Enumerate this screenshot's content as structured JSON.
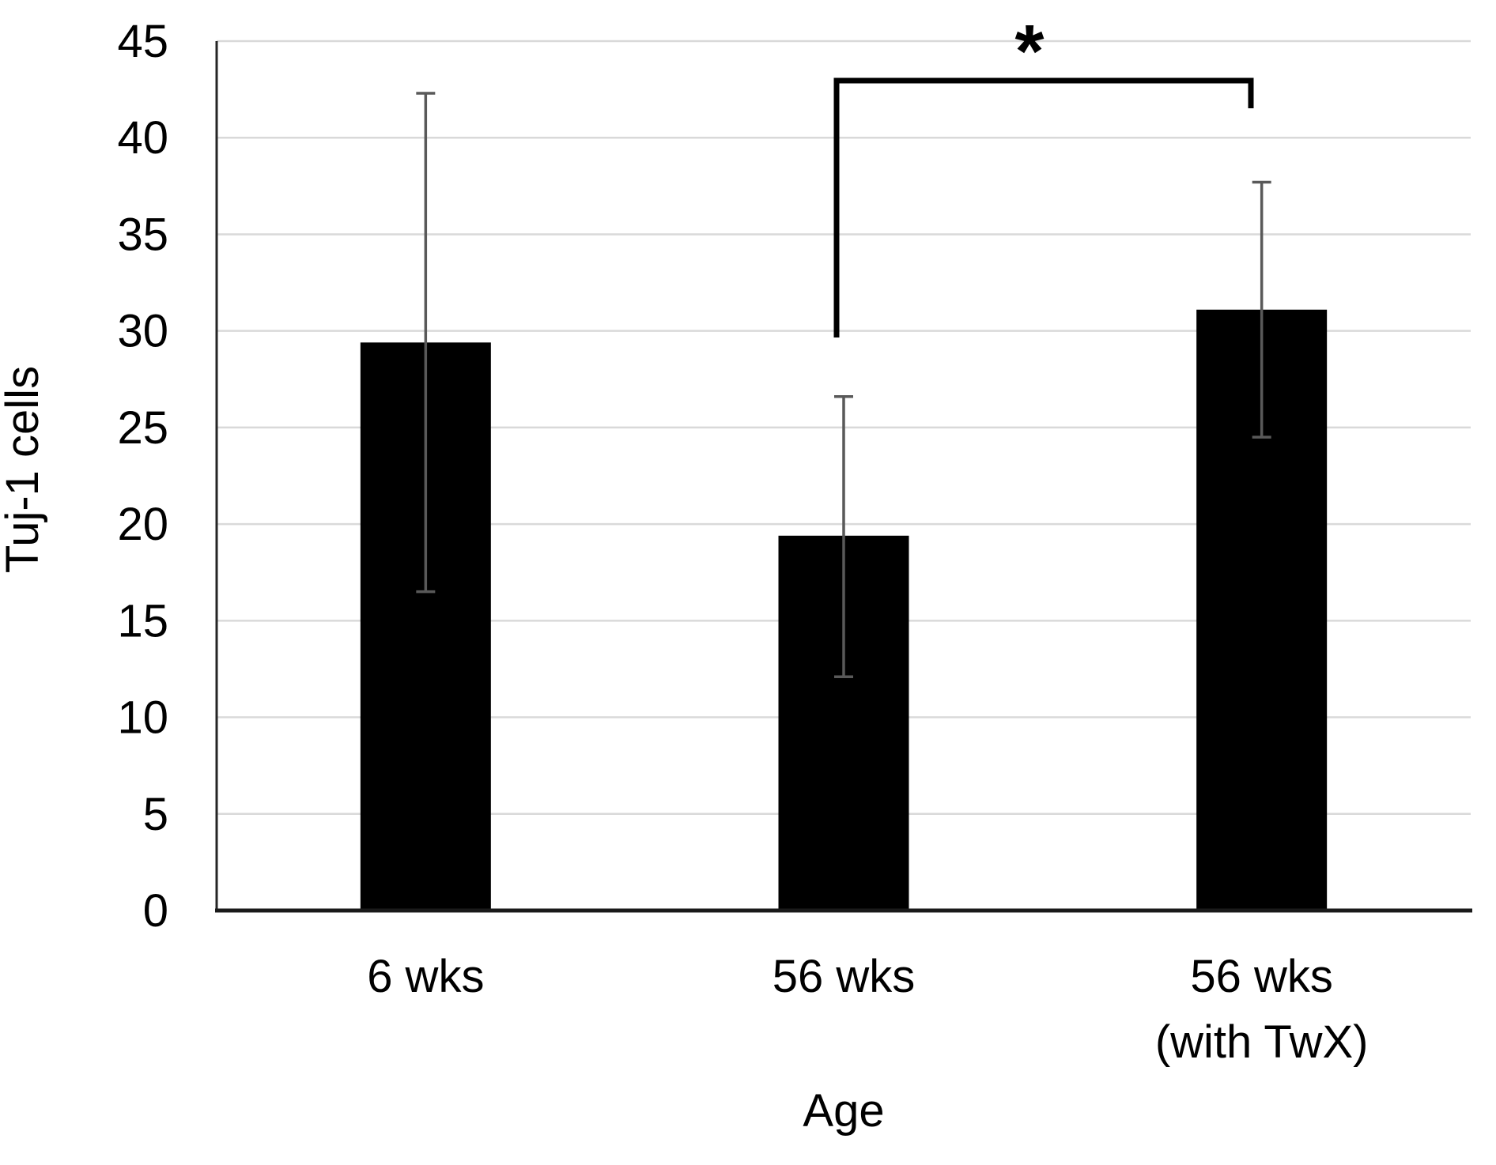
{
  "chart_data": {
    "type": "bar",
    "title": "",
    "xlabel": "Age",
    "ylabel": "Tuj-1 cells",
    "categories": [
      "6 wks",
      "56 wks",
      "56 wks (with TwX)"
    ],
    "category_lines": [
      [
        "6 wks"
      ],
      [
        "56 wks"
      ],
      [
        "56 wks",
        "(with TwX)"
      ]
    ],
    "values": [
      29.4,
      19.4,
      31.1
    ],
    "error_plus": [
      12.9,
      7.2,
      6.6
    ],
    "error_minus": [
      12.9,
      7.3,
      6.6
    ],
    "ylim": [
      0,
      45
    ],
    "ytick_step": 5,
    "yticks": [
      0,
      5,
      10,
      15,
      20,
      25,
      30,
      35,
      40,
      45
    ],
    "grid": "horizontal",
    "legend": "none",
    "significance": {
      "groups": [
        "56 wks",
        "56 wks (with TwX)"
      ],
      "label": "*"
    },
    "colors": {
      "bar": "#000000",
      "error_bar": "#595959",
      "gridline": "#d9d9d9",
      "axis": "#1a1a1a",
      "text": "#000000",
      "background": "#ffffff"
    }
  }
}
